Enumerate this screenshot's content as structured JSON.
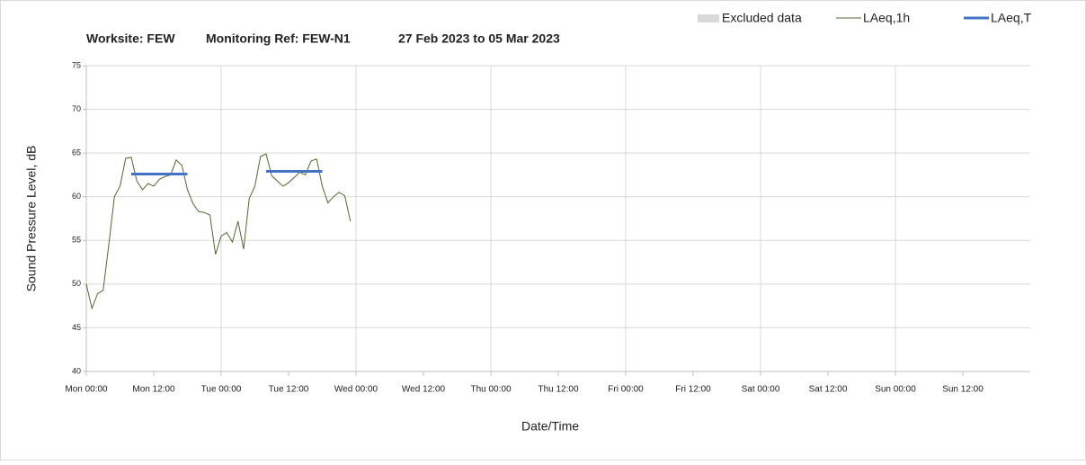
{
  "chart_data": {
    "type": "line",
    "title": [
      "Worksite: FEW",
      "Monitoring Ref: FEW-N1",
      "27 Feb 2023 to 05 Mar 2023"
    ],
    "xlabel": "Date/Time",
    "ylabel": "Sound Pressure Level, dB",
    "excluded": {
      "name": "Excluded data",
      "color": "#d9d9d9"
    },
    "x": [
      0,
      1,
      2,
      3,
      4,
      5,
      6,
      7,
      8,
      9,
      10,
      11,
      12,
      13,
      14,
      15,
      16,
      17,
      18,
      19,
      20,
      21,
      22,
      23,
      24,
      25,
      26,
      27,
      28,
      29,
      30,
      31,
      32,
      33,
      34,
      35,
      36,
      37,
      38,
      39,
      40,
      41,
      42,
      43,
      44,
      45,
      46,
      47
    ],
    "series": [
      {
        "name": "LAeq,1h",
        "color": "#4e6b2e",
        "width": 1,
        "values": [
          50,
          47.2,
          48.9,
          49.3,
          54.5,
          60,
          61.2,
          64.4,
          64.5,
          61.8,
          60.8,
          61.5,
          61.2,
          62,
          62.3,
          62.5,
          64.2,
          63.6,
          60.8,
          59.2,
          58.3,
          58.2,
          57.9,
          53.4,
          55.5,
          55.9,
          54.8,
          57.2,
          54,
          59.8,
          61.2,
          64.6,
          64.9,
          62.4,
          61.8,
          61.2,
          61.6,
          62.2,
          62.8,
          62.5,
          64.1,
          64.3,
          61.2,
          59.3,
          60,
          60.5,
          60.1,
          57.2
        ]
      },
      {
        "name": "LAeq,T",
        "color": "#4472c4",
        "width": 3,
        "values": [
          null,
          null,
          null,
          null,
          null,
          null,
          null,
          null,
          62.6,
          62.6,
          62.6,
          62.6,
          62.6,
          62.6,
          62.6,
          62.6,
          62.6,
          62.6,
          62.6,
          null,
          null,
          null,
          null,
          null,
          null,
          null,
          null,
          null,
          null,
          null,
          null,
          null,
          62.9,
          62.9,
          62.9,
          62.9,
          62.9,
          62.9,
          62.9,
          62.9,
          62.9,
          62.9,
          62.9,
          null,
          null,
          null,
          null,
          null
        ]
      }
    ],
    "xlim": [
      0,
      168
    ],
    "xticks": [
      {
        "value": 0,
        "label": "Mon 00:00"
      },
      {
        "value": 12,
        "label": "Mon 12:00"
      },
      {
        "value": 24,
        "label": "Tue 00:00"
      },
      {
        "value": 36,
        "label": "Tue 12:00"
      },
      {
        "value": 48,
        "label": "Wed 00:00"
      },
      {
        "value": 60,
        "label": "Wed 12:00"
      },
      {
        "value": 72,
        "label": "Thu 00:00"
      },
      {
        "value": 84,
        "label": "Thu 12:00"
      },
      {
        "value": 96,
        "label": "Fri 00:00"
      },
      {
        "value": 108,
        "label": "Fri 12:00"
      },
      {
        "value": 120,
        "label": "Sat 00:00"
      },
      {
        "value": 132,
        "label": "Sat 12:00"
      },
      {
        "value": 144,
        "label": "Sun 00:00"
      },
      {
        "value": 156,
        "label": "Sun 12:00"
      }
    ],
    "ylim": [
      40,
      75
    ],
    "yticks": [
      40,
      45,
      50,
      55,
      60,
      65,
      70,
      75
    ],
    "grid": true
  }
}
